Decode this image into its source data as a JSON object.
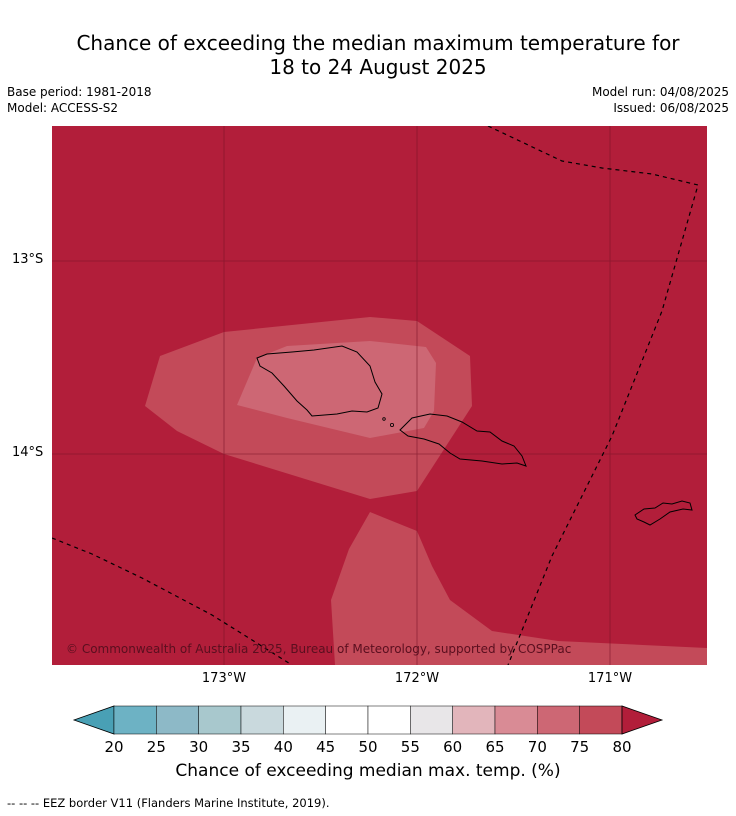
{
  "title_line1": "Chance of exceeding the median maximum temperature for",
  "title_line2": "18 to 24 August 2025",
  "base_period": "Base period: 1981-2018",
  "model": "Model: ACCESS-S2",
  "model_run": "Model run: 04/08/2025",
  "issued": "Issued: 06/08/2025",
  "copyright": "© Commonwealth of Australia 2025, Bureau of Meteorology, supported by COSPPac",
  "lat_labels": [
    "13°S",
    "14°S"
  ],
  "lon_labels": [
    "173°W",
    "172°W",
    "171°W"
  ],
  "colorbar": {
    "ticks": [
      "20",
      "25",
      "30",
      "35",
      "40",
      "45",
      "50",
      "55",
      "60",
      "65",
      "70",
      "75",
      "80"
    ],
    "colors": [
      "#49a0b5",
      "#6db2c4",
      "#8db9c7",
      "#a8c8cd",
      "#c9d9dd",
      "#eaf1f3",
      "#ffffff",
      "#ffffff",
      "#e8e6e8",
      "#e2b5bb",
      "#d98b95",
      "#cd6774",
      "#c34a59",
      "#b21e3a"
    ],
    "label": "Chance of exceeding median max. temp. (%)"
  },
  "footnote": "--  --  -- EEZ border V11 (Flanders Marine Institute, 2019).",
  "chart_data": {
    "type": "heatmap",
    "variable": "Chance of exceeding median max. temp. (%)",
    "lat_ticks": [
      "13°S",
      "14°S"
    ],
    "lon_ticks": [
      "173°W",
      "172°W",
      "171°W"
    ],
    "levels": [
      20,
      25,
      30,
      35,
      40,
      45,
      50,
      55,
      60,
      65,
      70,
      75,
      80
    ],
    "regions": [
      {
        "range": ">80",
        "color": "#b21e3a"
      },
      {
        "range": "75-80",
        "color": "#c34a59"
      },
      {
        "range": "70-75",
        "color": "#cd6774"
      }
    ]
  }
}
